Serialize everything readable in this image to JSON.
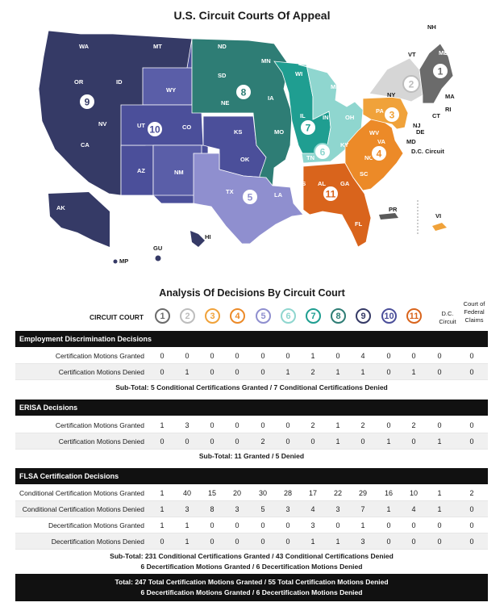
{
  "title": "U.S. Circuit Courts Of Appeal",
  "analysis_title": "Analysis Of Decisions By Circuit Court",
  "header": {
    "circuit_court_label": "CIRCUIT COURT",
    "circuits": [
      "1",
      "2",
      "3",
      "4",
      "5",
      "6",
      "7",
      "8",
      "9",
      "10",
      "11"
    ],
    "dc_label_1": "D.C.",
    "dc_label_2": "Circuit",
    "cfc_label_1": "Court of",
    "cfc_label_2": "Federal",
    "cfc_label_3": "Claims"
  },
  "circuit_colors": {
    "1": "#6b6b6b",
    "2": "#bdbdbd",
    "3": "#f0a23a",
    "4": "#ec8a28",
    "5": "#8f8fcf",
    "6": "#8fd6cf",
    "7": "#1f9e91",
    "8": "#2e7d75",
    "9": "#353a66",
    "10": "#4b4f9a",
    "11": "#d9641c"
  },
  "map_labels": {
    "states": [
      "WA",
      "OR",
      "ID",
      "MT",
      "WY",
      "NV",
      "CA",
      "UT",
      "CO",
      "AZ",
      "NM",
      "ND",
      "SD",
      "NE",
      "KS",
      "OK",
      "TX",
      "MN",
      "IA",
      "MO",
      "AR",
      "LA",
      "WI",
      "IL",
      "IN",
      "MI",
      "OH",
      "KY",
      "TN",
      "MS",
      "AL",
      "GA",
      "FL",
      "SC",
      "NC",
      "VA",
      "WV",
      "PA",
      "NY",
      "VT",
      "NH",
      "ME",
      "MA",
      "RI",
      "CT",
      "NJ",
      "DE",
      "MD",
      "AK",
      "HI",
      "GU",
      "MP",
      "PR",
      "VI"
    ],
    "dc_circuit": "D.C. Circuit"
  },
  "sections": [
    {
      "title": "Employment Discrimination Decisions",
      "rows": [
        {
          "label": "Certification Motions Granted",
          "values": [
            "0",
            "0",
            "0",
            "0",
            "0",
            "0",
            "1",
            "0",
            "4",
            "0",
            "0",
            "0",
            "0"
          ]
        },
        {
          "label": "Certification Motions Denied",
          "values": [
            "0",
            "1",
            "0",
            "0",
            "0",
            "1",
            "2",
            "1",
            "1",
            "0",
            "1",
            "0",
            "0"
          ]
        }
      ],
      "subtotal": [
        "Sub-Total:  5 Conditional Certifications Granted / 7 Conditional Certifications Denied"
      ]
    },
    {
      "title": "ERISA Decisions",
      "rows": [
        {
          "label": "Certification Motions Granted",
          "values": [
            "1",
            "3",
            "0",
            "0",
            "0",
            "0",
            "2",
            "1",
            "2",
            "0",
            "2",
            "0",
            "0"
          ]
        },
        {
          "label": "Certification Motions Denied",
          "values": [
            "0",
            "0",
            "0",
            "0",
            "2",
            "0",
            "0",
            "1",
            "0",
            "1",
            "0",
            "1",
            "0"
          ]
        }
      ],
      "subtotal": [
        "Sub-Total:  11 Granted / 5 Denied"
      ]
    },
    {
      "title": "FLSA Certification Decisions",
      "rows": [
        {
          "label": "Conditional Certification Motions Granted",
          "values": [
            "1",
            "40",
            "15",
            "20",
            "30",
            "28",
            "17",
            "22",
            "29",
            "16",
            "10",
            "1",
            "2"
          ]
        },
        {
          "label": "Conditional Certification Motions Denied",
          "values": [
            "1",
            "3",
            "8",
            "3",
            "5",
            "3",
            "4",
            "3",
            "7",
            "1",
            "4",
            "1",
            "0"
          ]
        },
        {
          "label": "Decertification Motions Granted",
          "values": [
            "1",
            "1",
            "0",
            "0",
            "0",
            "0",
            "3",
            "0",
            "1",
            "0",
            "0",
            "0",
            "0"
          ]
        },
        {
          "label": "Decertification Motions Denied",
          "values": [
            "0",
            "1",
            "0",
            "0",
            "0",
            "0",
            "1",
            "1",
            "3",
            "0",
            "0",
            "0",
            "0"
          ]
        }
      ],
      "subtotal": [
        "Sub-Total:  231 Conditional Certifications Granted / 43 Conditional Certifications Denied",
        "6 Decertification Motions Granted / 6 Decertification Motions Denied"
      ]
    }
  ],
  "total": [
    "Total:  247 Total Certification Motions Granted / 55 Total Certification Motions Denied",
    "6 Decertification Motions Granted / 6 Decertification Motions Denied"
  ]
}
